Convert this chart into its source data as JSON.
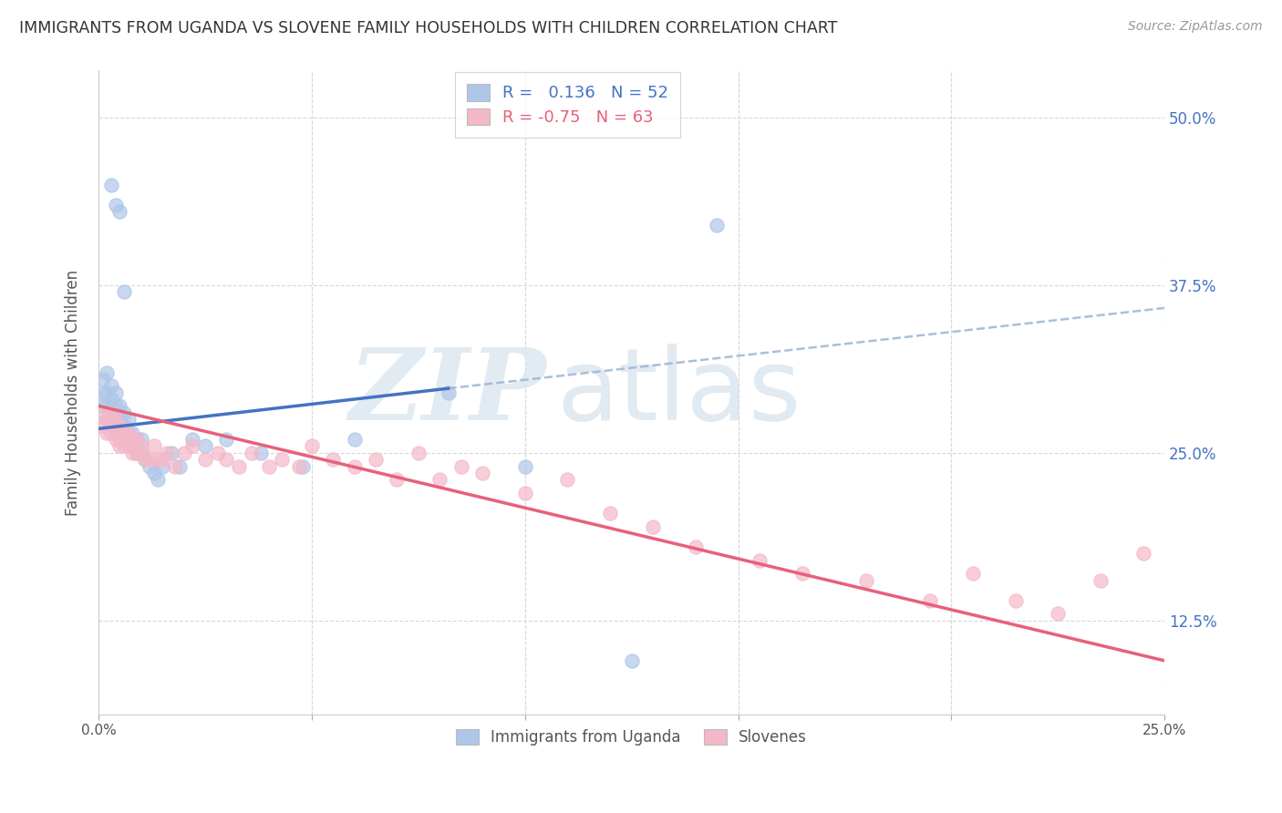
{
  "title": "IMMIGRANTS FROM UGANDA VS SLOVENE FAMILY HOUSEHOLDS WITH CHILDREN CORRELATION CHART",
  "source": "Source: ZipAtlas.com",
  "ylabel": "Family Households with Children",
  "xlim": [
    0.0,
    0.25
  ],
  "ylim": [
    0.055,
    0.535
  ],
  "yticks": [
    0.125,
    0.25,
    0.375,
    0.5
  ],
  "ytick_labels": [
    "12.5%",
    "25.0%",
    "37.5%",
    "50.0%"
  ],
  "xticks": [
    0.0,
    0.05,
    0.1,
    0.15,
    0.2,
    0.25
  ],
  "series1_color": "#aec6e8",
  "series2_color": "#f4b8c8",
  "line1_color": "#4472c4",
  "line1_dash_color": "#a0b8d8",
  "line2_color": "#e8607a",
  "legend_label1": "Immigrants from Uganda",
  "legend_label2": "Slovenes",
  "R1": 0.136,
  "N1": 52,
  "R2": -0.75,
  "N2": 63,
  "background_color": "#ffffff",
  "grid_color": "#d8d8e0",
  "line1_x0": 0.0,
  "line1_y0": 0.268,
  "line1_x1": 0.082,
  "line1_y1": 0.298,
  "line1_dash_x0": 0.082,
  "line1_dash_y0": 0.298,
  "line1_dash_x1": 0.25,
  "line1_dash_y1": 0.358,
  "line2_x0": 0.0,
  "line2_y0": 0.285,
  "line2_x1": 0.25,
  "line2_y1": 0.095,
  "series1_x": [
    0.001,
    0.001,
    0.001,
    0.002,
    0.002,
    0.002,
    0.002,
    0.003,
    0.003,
    0.003,
    0.003,
    0.004,
    0.004,
    0.004,
    0.004,
    0.005,
    0.005,
    0.005,
    0.005,
    0.006,
    0.006,
    0.006,
    0.007,
    0.007,
    0.007,
    0.008,
    0.008,
    0.009,
    0.009,
    0.01,
    0.01,
    0.011,
    0.012,
    0.013,
    0.014,
    0.015,
    0.017,
    0.019,
    0.022,
    0.025,
    0.03,
    0.038,
    0.048,
    0.06,
    0.082,
    0.1,
    0.125,
    0.145,
    0.003,
    0.004,
    0.005,
    0.006
  ],
  "series1_y": [
    0.285,
    0.295,
    0.305,
    0.275,
    0.285,
    0.295,
    0.31,
    0.27,
    0.28,
    0.29,
    0.3,
    0.265,
    0.275,
    0.285,
    0.295,
    0.265,
    0.275,
    0.285,
    0.265,
    0.26,
    0.27,
    0.28,
    0.255,
    0.265,
    0.275,
    0.255,
    0.265,
    0.25,
    0.26,
    0.25,
    0.26,
    0.245,
    0.24,
    0.235,
    0.23,
    0.24,
    0.25,
    0.24,
    0.26,
    0.255,
    0.26,
    0.25,
    0.24,
    0.26,
    0.295,
    0.24,
    0.095,
    0.42,
    0.45,
    0.435,
    0.43,
    0.37
  ],
  "series2_x": [
    0.001,
    0.001,
    0.002,
    0.002,
    0.003,
    0.003,
    0.003,
    0.004,
    0.004,
    0.004,
    0.005,
    0.005,
    0.005,
    0.006,
    0.006,
    0.007,
    0.007,
    0.008,
    0.008,
    0.009,
    0.009,
    0.01,
    0.01,
    0.011,
    0.012,
    0.013,
    0.014,
    0.015,
    0.016,
    0.018,
    0.02,
    0.022,
    0.025,
    0.028,
    0.03,
    0.033,
    0.036,
    0.04,
    0.043,
    0.047,
    0.05,
    0.055,
    0.06,
    0.065,
    0.07,
    0.075,
    0.08,
    0.085,
    0.09,
    0.1,
    0.11,
    0.12,
    0.13,
    0.14,
    0.155,
    0.165,
    0.18,
    0.195,
    0.205,
    0.215,
    0.225,
    0.235,
    0.245
  ],
  "series2_y": [
    0.28,
    0.27,
    0.275,
    0.265,
    0.27,
    0.28,
    0.265,
    0.265,
    0.275,
    0.26,
    0.26,
    0.27,
    0.255,
    0.255,
    0.265,
    0.255,
    0.265,
    0.25,
    0.26,
    0.25,
    0.26,
    0.25,
    0.255,
    0.245,
    0.245,
    0.255,
    0.245,
    0.245,
    0.25,
    0.24,
    0.25,
    0.255,
    0.245,
    0.25,
    0.245,
    0.24,
    0.25,
    0.24,
    0.245,
    0.24,
    0.255,
    0.245,
    0.24,
    0.245,
    0.23,
    0.25,
    0.23,
    0.24,
    0.235,
    0.22,
    0.23,
    0.205,
    0.195,
    0.18,
    0.17,
    0.16,
    0.155,
    0.14,
    0.16,
    0.14,
    0.13,
    0.155,
    0.175
  ]
}
